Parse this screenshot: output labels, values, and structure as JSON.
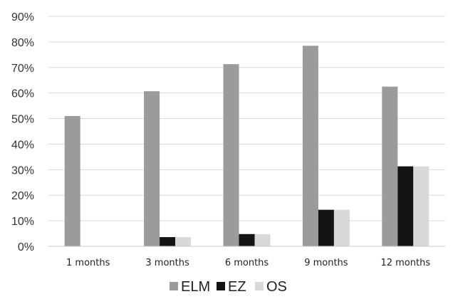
{
  "chart_data": {
    "type": "bar",
    "categories": [
      "1 months",
      "3 months",
      "6 months",
      "9 months",
      "12 months"
    ],
    "series": [
      {
        "name": "ELM",
        "values": [
          51,
          60.7,
          71.3,
          78.5,
          62.5
        ],
        "color": "#9b9b9b"
      },
      {
        "name": "EZ",
        "values": [
          0,
          3.6,
          4.8,
          14.3,
          31.3
        ],
        "color": "#141414"
      },
      {
        "name": "OS",
        "values": [
          0,
          3.6,
          4.8,
          14.3,
          31.3
        ],
        "color": "#d9d9d9"
      }
    ],
    "ylim": [
      0,
      90
    ],
    "y_ticks": [
      "0%",
      "10%",
      "20%",
      "30%",
      "40%",
      "50%",
      "60%",
      "70%",
      "80%",
      "90%"
    ],
    "y_tick_values": [
      0,
      10,
      20,
      30,
      40,
      50,
      60,
      70,
      80,
      90
    ],
    "grid": true,
    "legend_position": "bottom",
    "gridline_color": "#d9d9d9"
  }
}
